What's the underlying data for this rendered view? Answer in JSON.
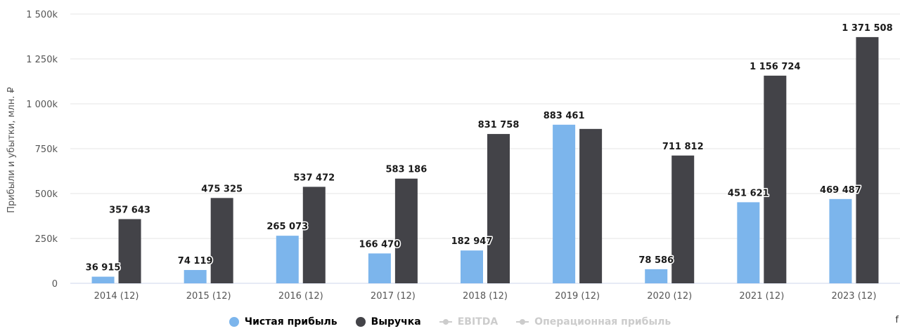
{
  "chart_data": {
    "type": "bar",
    "categories": [
      "2014 (12)",
      "2015 (12)",
      "2016 (12)",
      "2017 (12)",
      "2018 (12)",
      "2019 (12)",
      "2020 (12)",
      "2021 (12)",
      "2023 (12)"
    ],
    "series": [
      {
        "name": "Чистая прибыль",
        "color": "#7cb5ec",
        "values": [
          36915,
          74119,
          265073,
          166470,
          182947,
          883461,
          78586,
          451621,
          469487
        ],
        "labels": [
          "36 915",
          "74 119",
          "265 073",
          "166 470",
          "182 947",
          "883 461",
          "78 586",
          "451 621",
          "469 487"
        ]
      },
      {
        "name": "Выручка",
        "color": "#434348",
        "values": [
          357643,
          475325,
          537472,
          583186,
          831758,
          860000,
          711812,
          1156724,
          1371508
        ],
        "labels": [
          "357 643",
          "475 325",
          "537 472",
          "583 186",
          "831 758",
          "",
          "711 812",
          "1 156 724",
          "1 371 508"
        ]
      }
    ],
    "ylabel": "Прибыли и убытки, млн. ₽",
    "ylim": [
      0,
      1500000
    ],
    "yticks": [
      0,
      250000,
      500000,
      750000,
      1000000,
      1250000,
      1500000
    ],
    "ytick_labels": [
      "0",
      "250k",
      "500k",
      "750k",
      "1 000k",
      "1 250k",
      "1 500k"
    ],
    "grid": true,
    "legend_position": "bottom-center"
  },
  "legend": {
    "items": [
      {
        "label": "Чистая прибыль",
        "color": "#7cb5ec",
        "hidden": false
      },
      {
        "label": "Выручка",
        "color": "#434348",
        "hidden": false
      },
      {
        "label": "EBITDA",
        "color": "#cccccc",
        "hidden": true
      },
      {
        "label": "Операционная прибыль",
        "color": "#cccccc",
        "hidden": true
      }
    ]
  },
  "edge_mark": "f"
}
